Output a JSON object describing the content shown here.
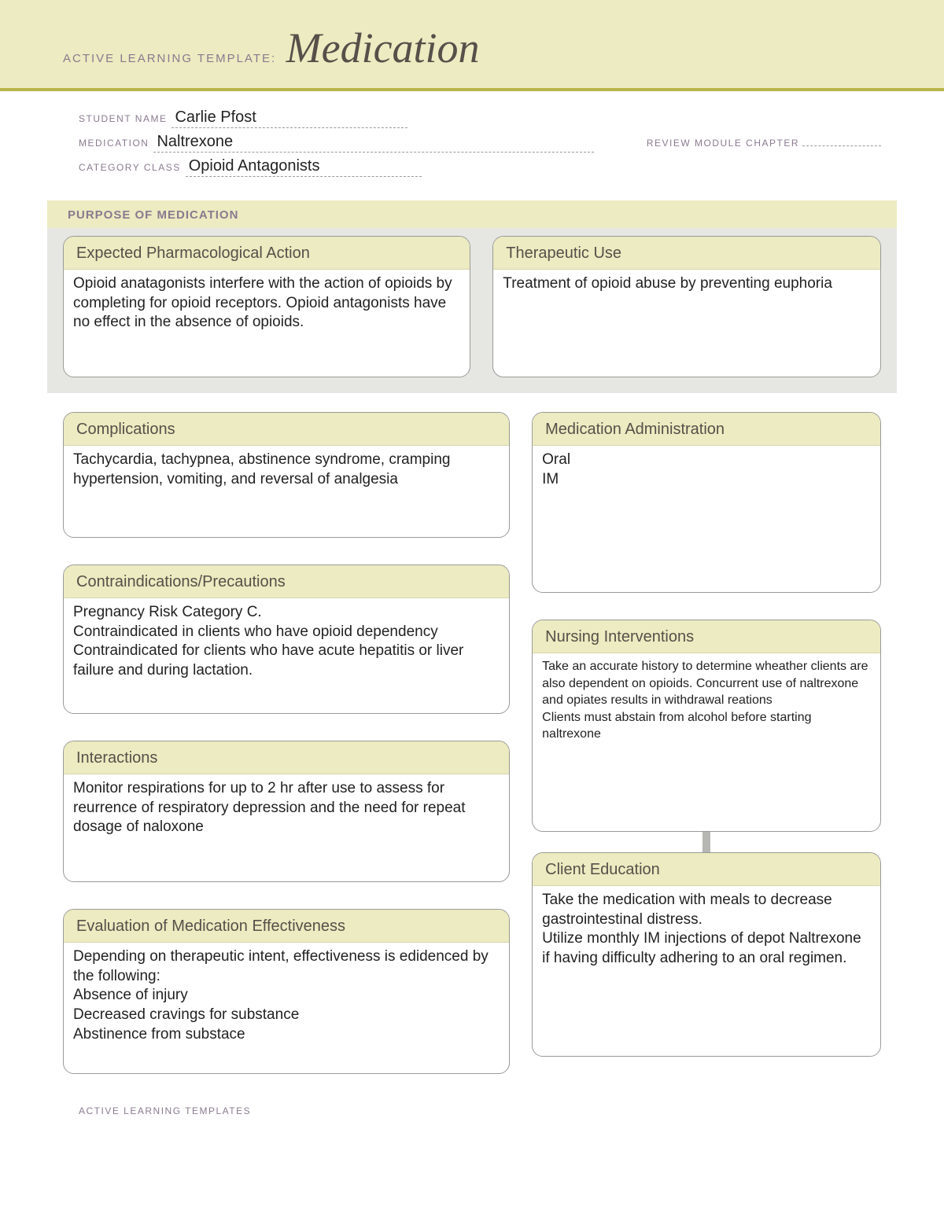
{
  "colors": {
    "banner_bg": "#ecebc1",
    "banner_rule": "#b8b548",
    "label_text": "#8a7a8f",
    "title_text": "#555049",
    "card_border": "#9a9a97",
    "body_text": "#222222",
    "purpose_wrap_bg": "#e6e6e3",
    "connector": "#b6b6b2"
  },
  "header": {
    "prefix": "ACTIVE LEARNING TEMPLATE:",
    "title": "Medication"
  },
  "fields": {
    "student_label": "STUDENT NAME",
    "student_value": "Carlie Pfost",
    "medication_label": "MEDICATION",
    "medication_value": "Naltrexone",
    "review_label": "REVIEW MODULE CHAPTER",
    "review_value": "",
    "category_label": "CATEGORY CLASS",
    "category_value": "Opioid Antagonists"
  },
  "purpose": {
    "heading": "PURPOSE OF MEDICATION",
    "pharm": {
      "title": "Expected Pharmacological Action",
      "body": "Opioid anatagonists interfere with the action of opioids by completing for opioid receptors.  Opioid antagonists have no effect in the absence of opioids."
    },
    "therapeutic": {
      "title": "Therapeutic Use",
      "body": "Treatment of opioid abuse by preventing euphoria"
    }
  },
  "cards": {
    "complications": {
      "title": "Complications",
      "body": "Tachycardia, tachypnea, abstinence syndrome, cramping hypertension, vomiting, and reversal of analgesia"
    },
    "contra": {
      "title": "Contraindications/Precautions",
      "body": "Pregnancy Risk Category C.\nContraindicated in clients who have opioid dependency\nContraindicated for clients who have acute hepatitis or liver failure and during lactation."
    },
    "interactions": {
      "title": "Interactions",
      "body": "Monitor respirations for up to 2 hr after use to assess for reurrence of respiratory depression and the need for repeat dosage of naloxone"
    },
    "evaluation": {
      "title": "Evaluation of Medication Effectiveness",
      "body": "Depending on therapeutic intent, effectiveness is edidenced by the following:\nAbsence of injury\nDecreased cravings for substance\nAbstinence from substace"
    },
    "admin": {
      "title": "Medication Administration",
      "body": "Oral\nIM"
    },
    "nursing": {
      "title": "Nursing Interventions",
      "body": "Take an accurate history to determine wheather clients are also dependent on opioids.  Concurrent use of naltrexone and opiates results in withdrawal reations\nClients must abstain from alcohol before starting naltrexone"
    },
    "client_ed": {
      "title": "Client Education",
      "body": "Take the medication with meals to decrease gastrointestinal distress.\nUtilize monthly IM injections of depot Naltrexone if having difficulty adhering to an oral regimen."
    }
  },
  "footer": "ACTIVE LEARNING TEMPLATES"
}
